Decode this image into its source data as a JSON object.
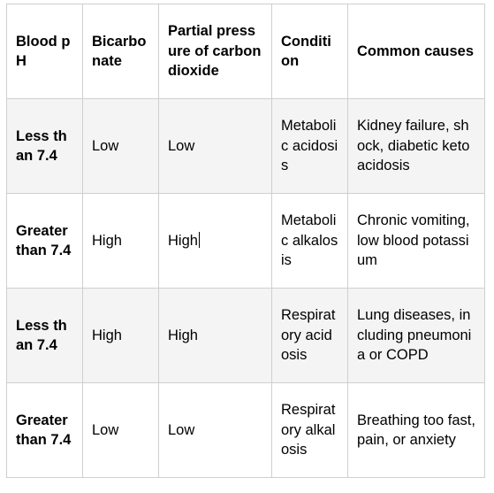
{
  "table": {
    "headers": [
      "Blood pH",
      "Bicarbonate",
      "Partial pressure of carbon dioxide",
      "Condition",
      "Common causes"
    ],
    "rows": [
      {
        "blood_ph": "Less than 7.4",
        "bicarbonate": "Low",
        "pco2": "Low",
        "condition": "Metabolic acidosis",
        "causes": "Kidney failure, shock, diabetic ketoacidosis"
      },
      {
        "blood_ph": "Greater than 7.4",
        "bicarbonate": "High",
        "pco2": "High",
        "condition": "Metabolic alkalosis",
        "causes": "Chronic vomiting, low blood potassium"
      },
      {
        "blood_ph": "Less than 7.4",
        "bicarbonate": "High",
        "pco2": "High",
        "condition": "Respiratory acidosis",
        "causes": "Lung diseases, including pneumonia or COPD"
      },
      {
        "blood_ph": "Greater than 7.4",
        "bicarbonate": "Low",
        "pco2": "Low",
        "condition": "Respiratory alkalosis",
        "causes": "Breathing too fast, pain, or anxiety"
      }
    ]
  }
}
